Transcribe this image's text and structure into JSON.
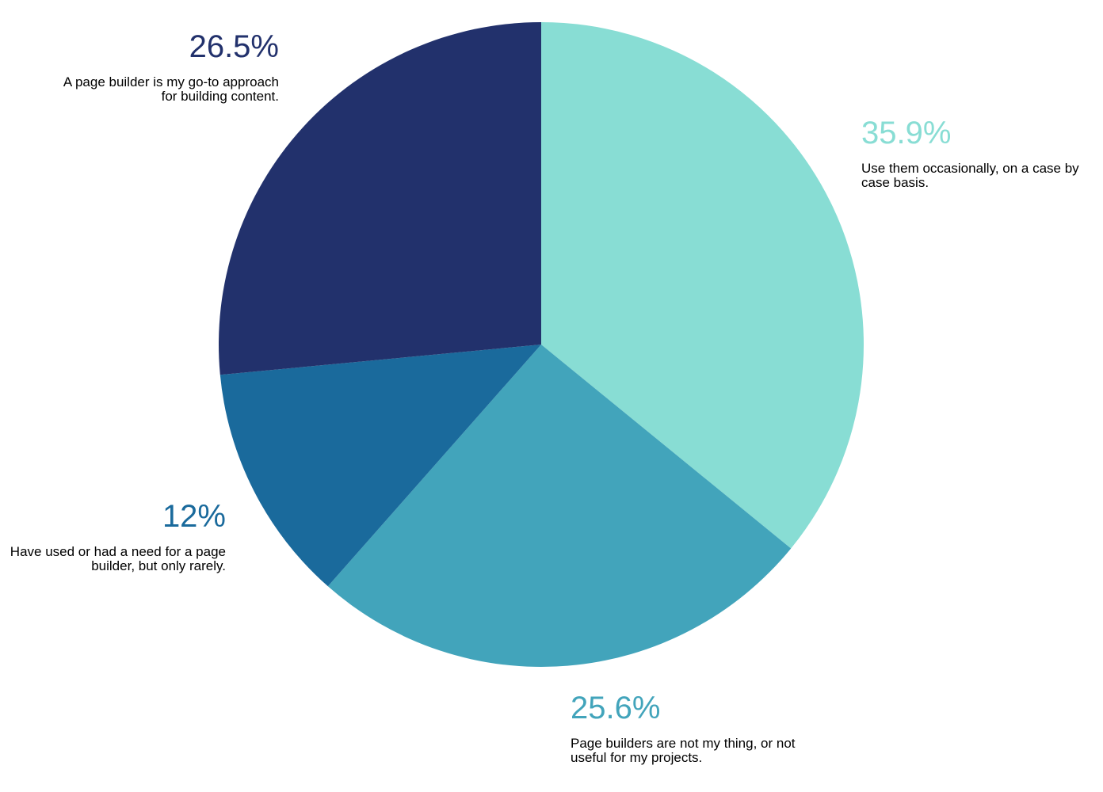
{
  "chart_data": {
    "type": "pie",
    "categories": [
      "Use them occasionally, on a case by case basis.",
      "Page builders are not my thing, or not useful for my projects.",
      "Have used or had a need for a page builder, but only rarely.",
      "A page builder is my go-to approach for building content."
    ],
    "values": [
      35.9,
      25.6,
      12,
      26.5
    ],
    "value_labels": [
      "35.9%",
      "25.6%",
      "12%",
      "26.5%"
    ],
    "colors": [
      "#88ddd4",
      "#42a4bb",
      "#1a6a9c",
      "#22316c"
    ]
  }
}
